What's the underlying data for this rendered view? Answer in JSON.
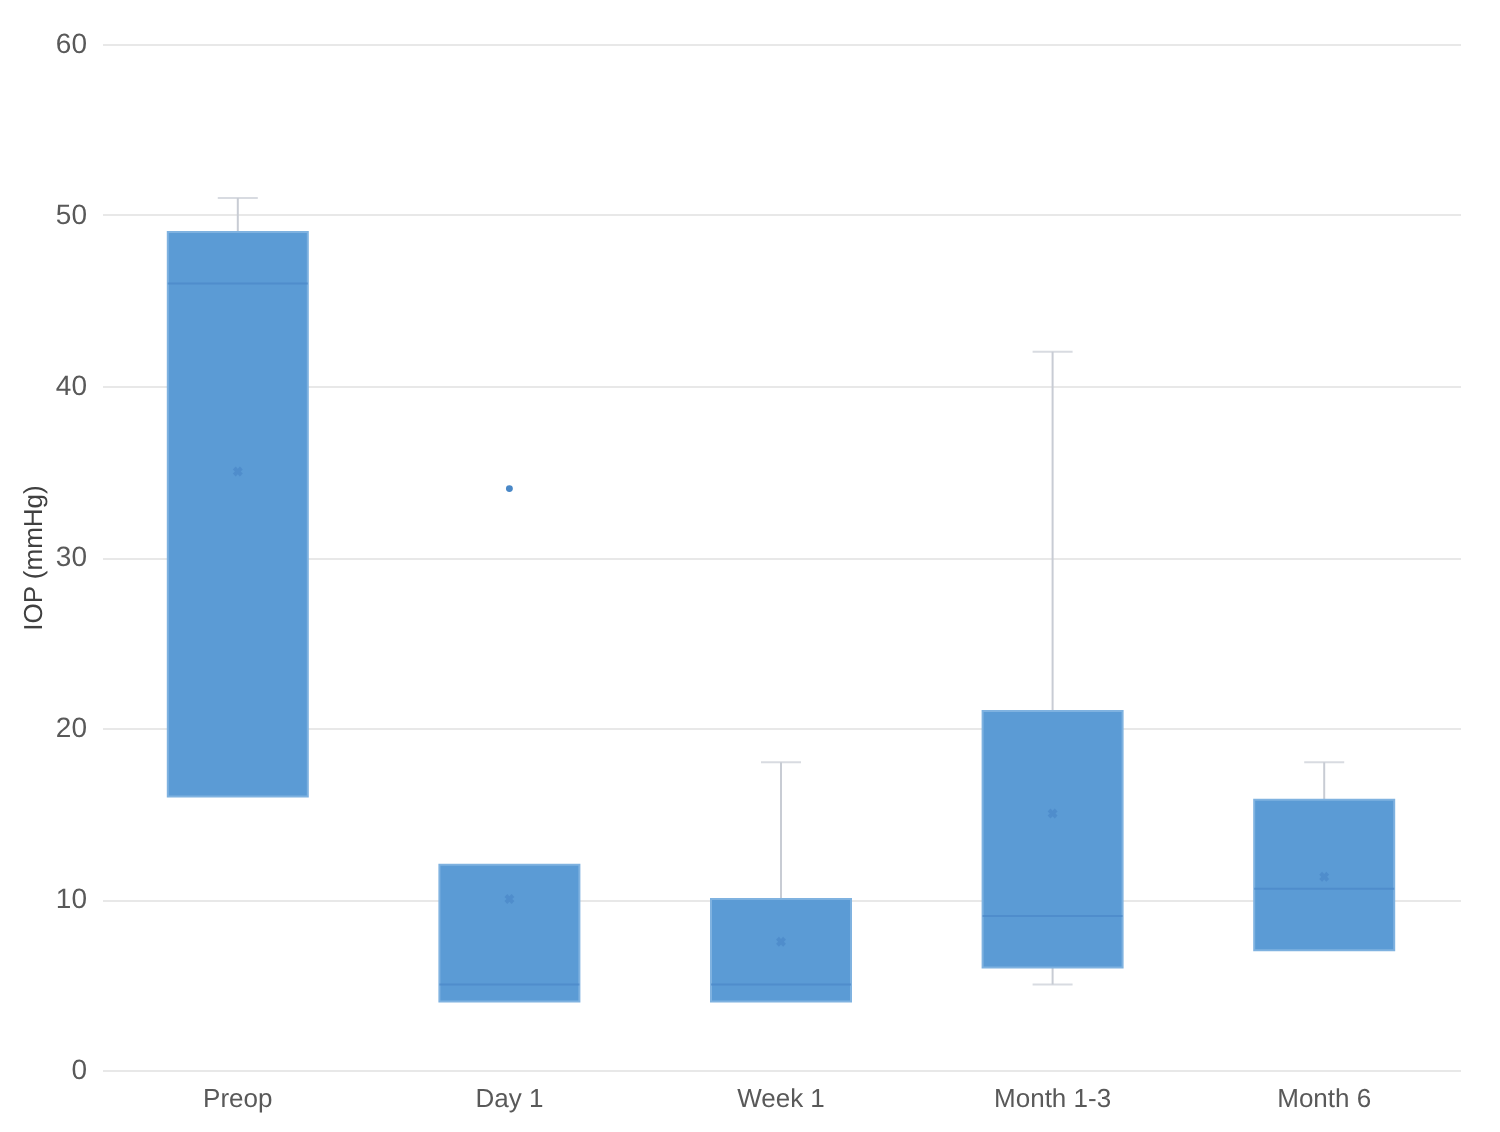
{
  "chart_data": {
    "type": "box",
    "ylabel": "IOP (mmHg)",
    "categories": [
      "Preop",
      "Day 1",
      "Week 1",
      "Month 1-3",
      "Month 6"
    ],
    "boxes": [
      {
        "low": 16,
        "q1": 16,
        "median": 46,
        "q3": 49,
        "high": 51,
        "mean": 35
      },
      {
        "low": 4,
        "q1": 4,
        "median": 5,
        "q3": 12,
        "high": 12,
        "mean": 10,
        "outliers": [
          34
        ]
      },
      {
        "low": 4,
        "q1": 4,
        "median": 5,
        "q3": 10,
        "high": 18,
        "mean": 7.5
      },
      {
        "low": 5,
        "q1": 6,
        "median": 9,
        "q3": 21,
        "high": 42,
        "mean": 15
      },
      {
        "low": 7,
        "q1": 7,
        "median": 10.6,
        "q3": 15.8,
        "high": 18,
        "mean": 11.3
      }
    ],
    "color": "#5b9bd5",
    "ylim": [
      0,
      60
    ],
    "yticks": [
      0,
      10,
      20,
      30,
      40,
      50,
      60
    ],
    "grid": "y"
  }
}
